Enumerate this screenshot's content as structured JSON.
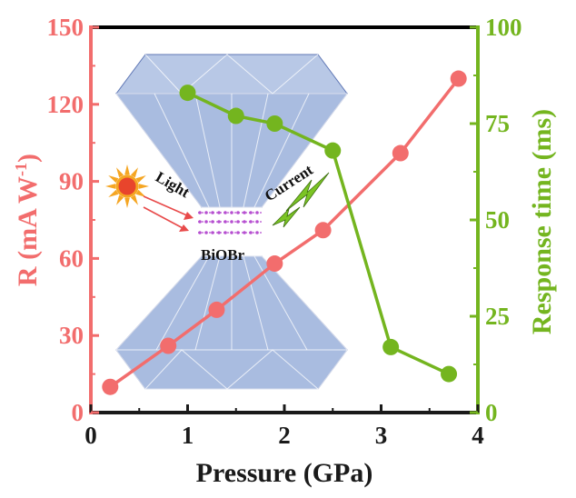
{
  "colors": {
    "left_series": "#f26d6d",
    "right_series": "#74b51f",
    "axis_bottom": "#1a1a1a",
    "axis_top": "#000000",
    "diamond_fill": "#b8c8e6",
    "diamond_stroke": "#5f77b5",
    "sun": "#f5a623",
    "sun_core": "#e8452c",
    "bolt": "#7bc424",
    "lattice": "#b64fd0"
  },
  "inset": {
    "light_label": "Light",
    "current_label": "Current",
    "material_label": "BiOBr",
    "icons": [
      "sun-icon",
      "lightning-bolt-icon",
      "diamond-anvil-icon"
    ]
  },
  "chart_data": {
    "type": "line",
    "xlabel": "Pressure (GPa)",
    "ylabel_left": "R (mA W-1)",
    "ylabel_right": "Response time (ms)",
    "xlim": [
      0,
      4
    ],
    "ylim_left": [
      0,
      150
    ],
    "ylim_right": [
      0,
      100
    ],
    "x_ticks": [
      "0",
      "1",
      "2",
      "3",
      "4"
    ],
    "y_ticks_left": [
      "0",
      "30",
      "60",
      "90",
      "120",
      "150"
    ],
    "y_ticks_right": [
      "0",
      "25",
      "50",
      "75",
      "100"
    ],
    "grid": false,
    "series": [
      {
        "axis": "left",
        "x": [
          0.2,
          0.8,
          1.3,
          1.9,
          2.4,
          3.2,
          3.8
        ],
        "values": [
          10,
          26,
          40,
          58,
          71,
          101,
          130
        ]
      },
      {
        "axis": "right",
        "x": [
          1.0,
          1.5,
          1.9,
          2.5,
          3.1,
          3.7
        ],
        "values": [
          83,
          77,
          75,
          68,
          17,
          10
        ]
      }
    ]
  }
}
